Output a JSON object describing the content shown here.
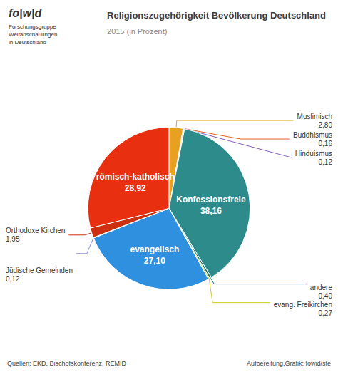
{
  "chart_data": {
    "type": "pie",
    "title": "Religionszugehörigkeit Bevölkerung Deutschland",
    "subtitle": "2015 (in Prozent)",
    "categories": [
      "Muslimisch",
      "Buddhismus",
      "Hinduismus",
      "Konfessionsfreie",
      "andere",
      "evang. Freikirchen",
      "evangelisch",
      "Jüdische Gemeinden",
      "Orthodoxe Kirchen",
      "römisch-katholisch"
    ],
    "values": [
      2.8,
      0.16,
      0.12,
      38.16,
      0.4,
      0.27,
      27.1,
      0.12,
      1.95,
      28.92
    ],
    "value_labels": [
      "2,80",
      "0,16",
      "0,12",
      "38,16",
      "0,40",
      "0,27",
      "27,10",
      "0,12",
      "1,95",
      "28,92"
    ],
    "colors": [
      "#e8a020",
      "#e86020",
      "#8060c0",
      "#2e8b8b",
      "#187878",
      "#c8d020",
      "#3090e0",
      "#8888dd",
      "#cc3010",
      "#e83010"
    ],
    "data_labels": true,
    "annotations": [
      "fo|w|d",
      "Forschungsgruppe\nWeltanschauungen\nin Deutschland",
      "Quellen: EKD, Bischofskonferenz, REMID",
      "Aufbereitung,Grafik: fowid/sfe"
    ]
  }
}
